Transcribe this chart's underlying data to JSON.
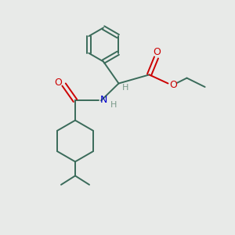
{
  "bg_color": "#e8eae8",
  "bond_color": "#3a6b5a",
  "O_color": "#cc0000",
  "N_color": "#0000cc",
  "H_color": "#7a9a8a",
  "lw": 1.4,
  "figsize": [
    3.0,
    3.0
  ],
  "dpi": 100,
  "xlim": [
    0,
    10
  ],
  "ylim": [
    0,
    10
  ]
}
